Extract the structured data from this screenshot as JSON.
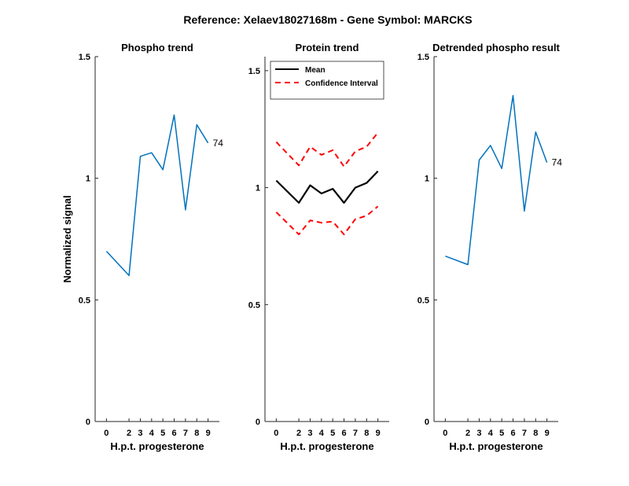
{
  "figure": {
    "suptitle": "Reference:  Xelaev18027168m - Gene Symbol:  MARCKS"
  },
  "chart_data": [
    {
      "type": "line",
      "title": "Phospho trend",
      "xlabel": "H.p.t. progesterone",
      "ylabel": "Normalized signal",
      "categories": [
        "0",
        "2",
        "3",
        "4",
        "5",
        "6",
        "7",
        "8",
        "9"
      ],
      "ylim": [
        0,
        1.5
      ],
      "yticks": [
        "0",
        "0.5",
        "1",
        "1.5"
      ],
      "series": [
        {
          "values": [
            0.7,
            0.6,
            1.09,
            1.105,
            1.035,
            1.26,
            0.87,
            1.22,
            1.145
          ],
          "color": "#0072BD",
          "end_label": "74"
        }
      ]
    },
    {
      "type": "line",
      "title": "Protein trend",
      "xlabel": "H.p.t. progesterone",
      "categories": [
        "0",
        "2",
        "3",
        "4",
        "5",
        "6",
        "7",
        "8",
        "9"
      ],
      "ylim": [
        0,
        1.56
      ],
      "yticks": [
        "0",
        "0.5",
        "1",
        "1.5"
      ],
      "legend_position": "top-left",
      "series": [
        {
          "name": "Mean",
          "values": [
            1.03,
            0.935,
            1.01,
            0.975,
            0.995,
            0.935,
            1.0,
            1.02,
            1.07
          ],
          "color": "#000000",
          "style": "solid"
        },
        {
          "name": "Confidence Interval",
          "values": [
            1.195,
            1.095,
            1.175,
            1.14,
            1.16,
            1.09,
            1.155,
            1.175,
            1.235
          ],
          "color": "#FF0000",
          "style": "dashed"
        },
        {
          "values": [
            0.895,
            0.8,
            0.86,
            0.85,
            0.855,
            0.8,
            0.865,
            0.88,
            0.92
          ],
          "color": "#FF0000",
          "style": "dashed"
        }
      ]
    },
    {
      "type": "line",
      "title": "Detrended phospho result",
      "xlabel": "H.p.t. progesterone",
      "categories": [
        "0",
        "2",
        "3",
        "4",
        "5",
        "6",
        "7",
        "8",
        "9"
      ],
      "ylim": [
        0,
        1.5
      ],
      "yticks": [
        "0",
        "0.5",
        "1",
        "1.5"
      ],
      "series": [
        {
          "values": [
            0.68,
            0.645,
            1.075,
            1.135,
            1.04,
            1.34,
            0.865,
            1.19,
            1.065
          ],
          "color": "#0072BD",
          "end_label": "74"
        }
      ]
    }
  ]
}
